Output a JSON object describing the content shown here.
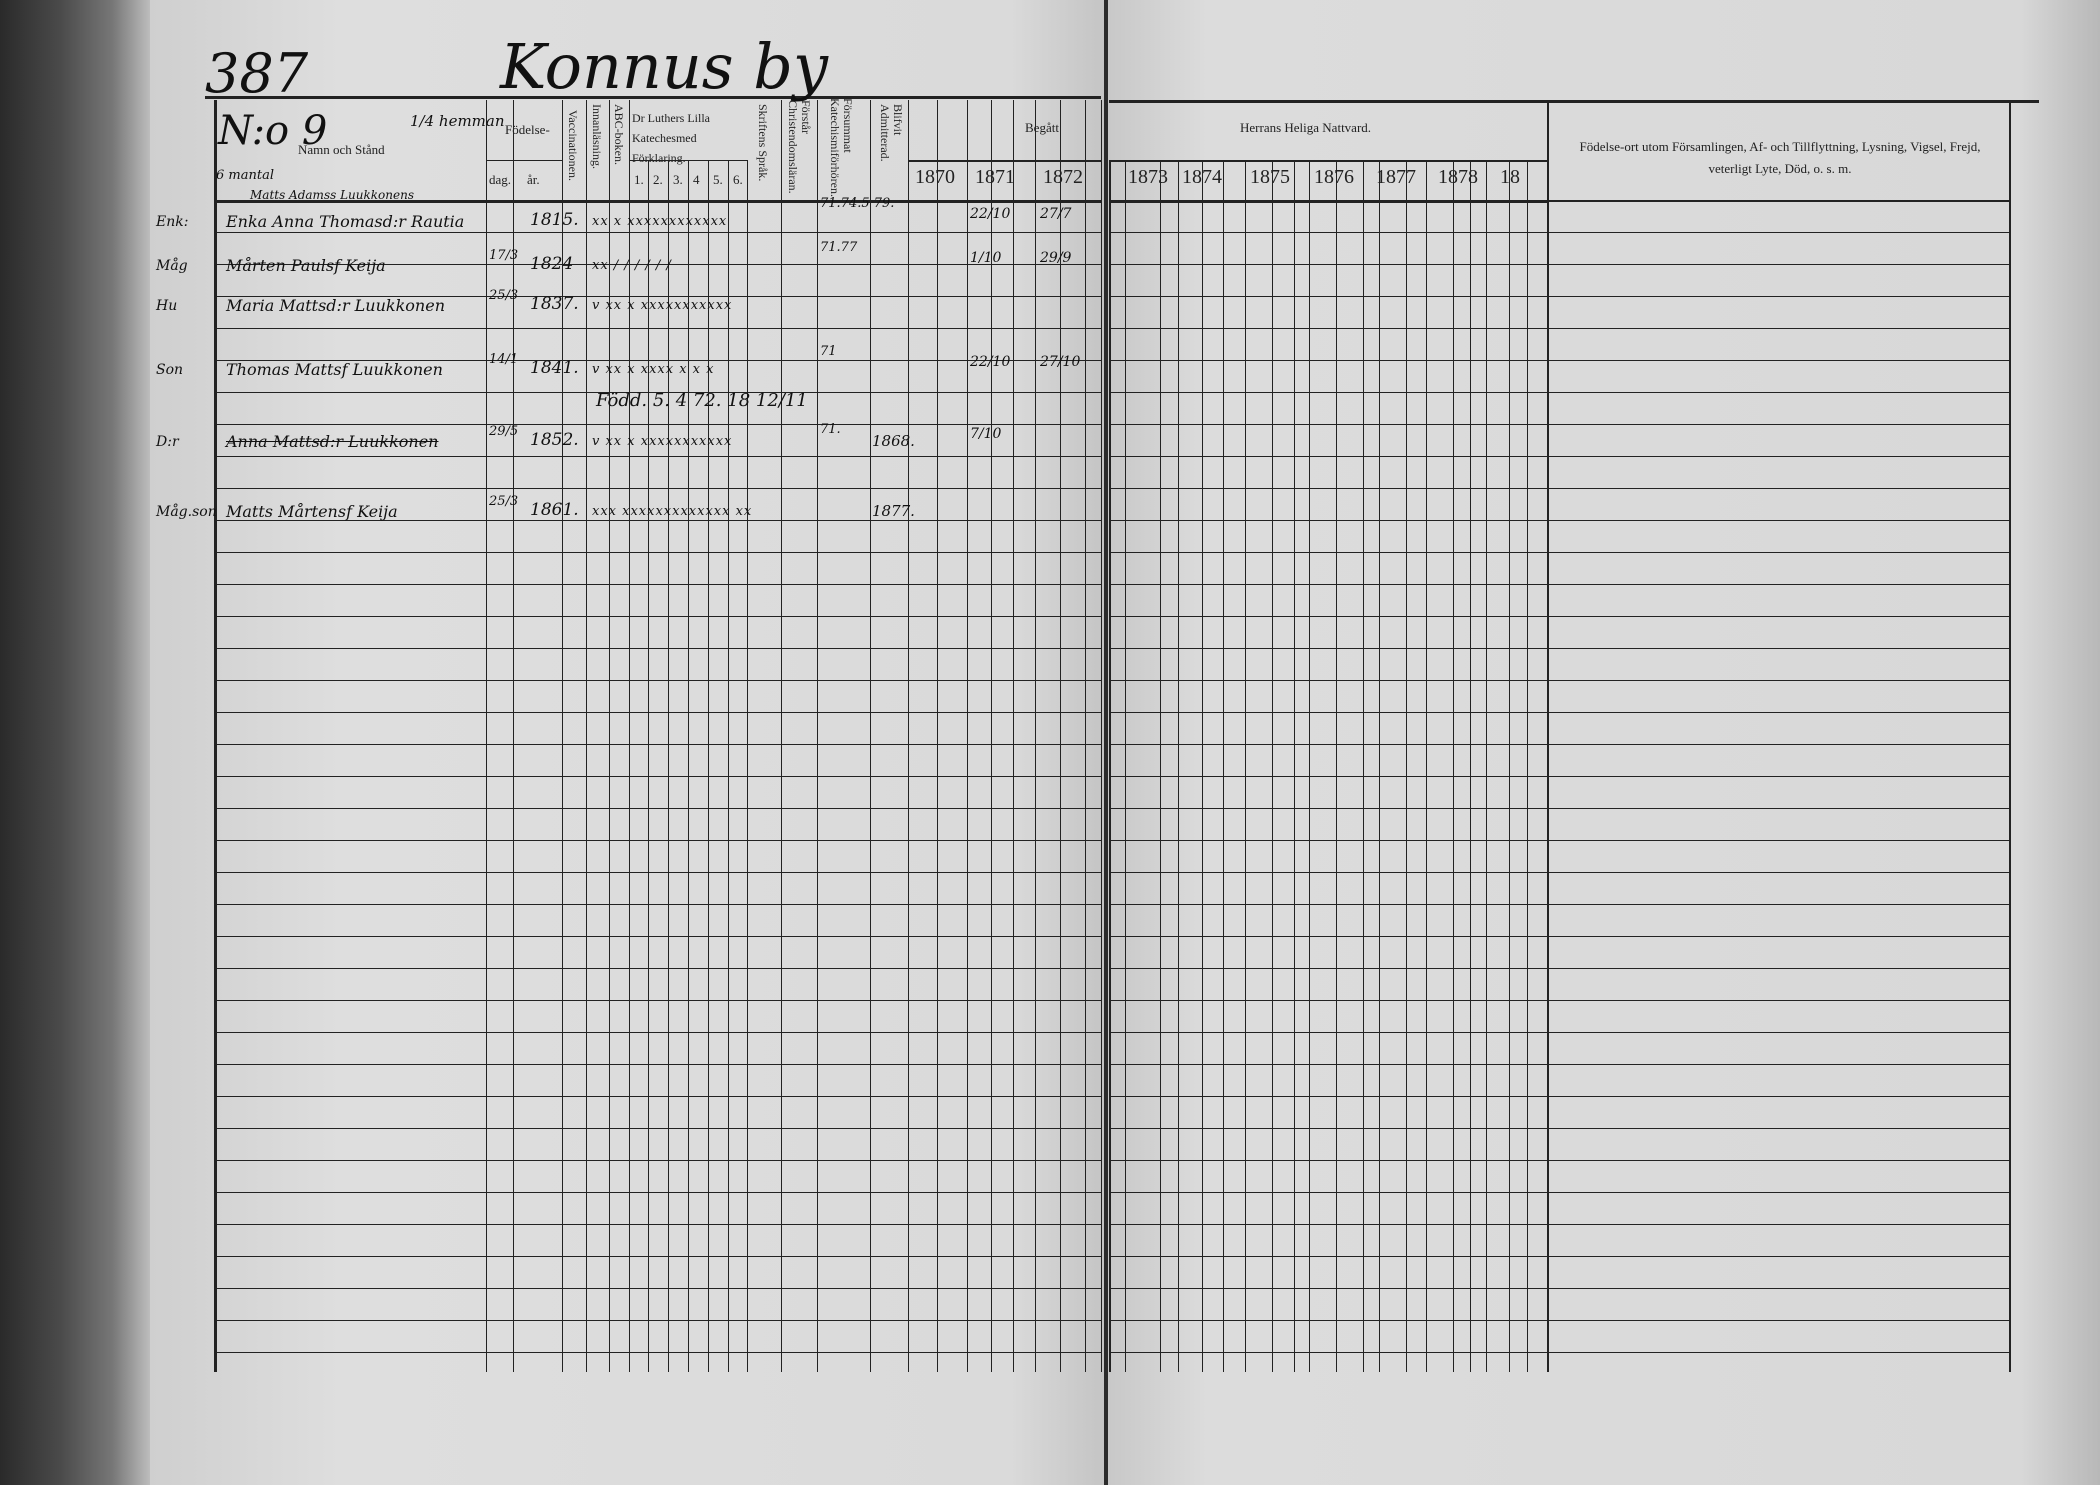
{
  "page_number": "387",
  "village_title": "Konnus by",
  "household_number": "N:o 9",
  "homestead_fraction": "1/4 hemman",
  "side_note": "6 mantal",
  "headers": {
    "name": "Namn och Stånd",
    "birth": "Födelse-",
    "birth_day": "dag.",
    "birth_year": "år.",
    "vaccination": "Vaccinationen.",
    "reading": "Innanläsning.",
    "abc": "ABC-boken.",
    "catechism": "Dr Luthers Lilla Katechesmed Förklaring.",
    "catechism_parts": [
      "1.",
      "2.",
      "3.",
      "4",
      "5.",
      "6."
    ],
    "scripture": "Skriftens Språk.",
    "christianity": "Förstår Christendomsläran.",
    "missed": "Försummat Katechismiförhören.",
    "admitted": "Blifvit Admitterad.",
    "begatt": "Begått",
    "communion": "Herrans Heliga Nattvard.",
    "remarks": "Födelse-ort utom Församlingen, Af- och Tillflyttning, Lysning, Vigsel, Frejd, veterligt Lyte, Död, o. s. m."
  },
  "years_left": [
    "1870",
    "1871",
    "1872"
  ],
  "years_right": [
    "1873",
    "1874",
    "1875",
    "1876",
    "1877",
    "1878",
    "18"
  ],
  "entries": [
    {
      "above": "Matts Adamss Luukkonens",
      "status": "Enk:",
      "name": "Enka Anna Thomasd:r Rautia",
      "day": "",
      "year": "1815.",
      "marks": "xx x xxxxxxxxxxxx",
      "missed": "71.74.5 79.",
      "admitted": "",
      "communion": [
        "22/10",
        "27/7"
      ],
      "struck": false
    },
    {
      "above": "",
      "status": "Måg",
      "name": "Mårten Paulsf Keija",
      "day": "17/3",
      "year": "1824",
      "marks": "xx / / / / / /",
      "missed": "71.77",
      "admitted": "",
      "communion": [
        "1/10",
        "29/9"
      ],
      "struck": false
    },
    {
      "above": "",
      "status": "Hu",
      "name": "Maria Mattsd:r Luukkonen",
      "day": "25/3",
      "year": "1837.",
      "marks": "v xx x xxxxxxxxxxx",
      "missed": "",
      "admitted": "",
      "communion": [],
      "struck": false
    },
    {
      "above": "",
      "status": "Son",
      "name": "Thomas Mattsf Luukkonen",
      "day": "14/1",
      "year": "1841.",
      "marks": "v xx x xxxx x x x",
      "missed": "71",
      "admitted": "",
      "communion": [
        "22/10",
        "27/10"
      ],
      "struck": false
    },
    {
      "above": "",
      "status": "D:r",
      "name": "Anna Mattsd:r Luukkonen",
      "day": "29/5",
      "year": "1852.",
      "marks": "v xx x xxxxxxxxxxx",
      "missed": "71.",
      "admitted": "1868.",
      "communion": [
        "7/10"
      ],
      "struck": true,
      "note": "Född. 5. 4 72. 18 12/11"
    },
    {
      "above": "",
      "status": "Måg.son",
      "name": "Matts Mårtensf Keija",
      "day": "25/3",
      "year": "1861.",
      "marks": "xxx xxxxxxxxxxxxx xx",
      "missed": "",
      "admitted": "1877.",
      "communion": [],
      "struck": false
    }
  ]
}
